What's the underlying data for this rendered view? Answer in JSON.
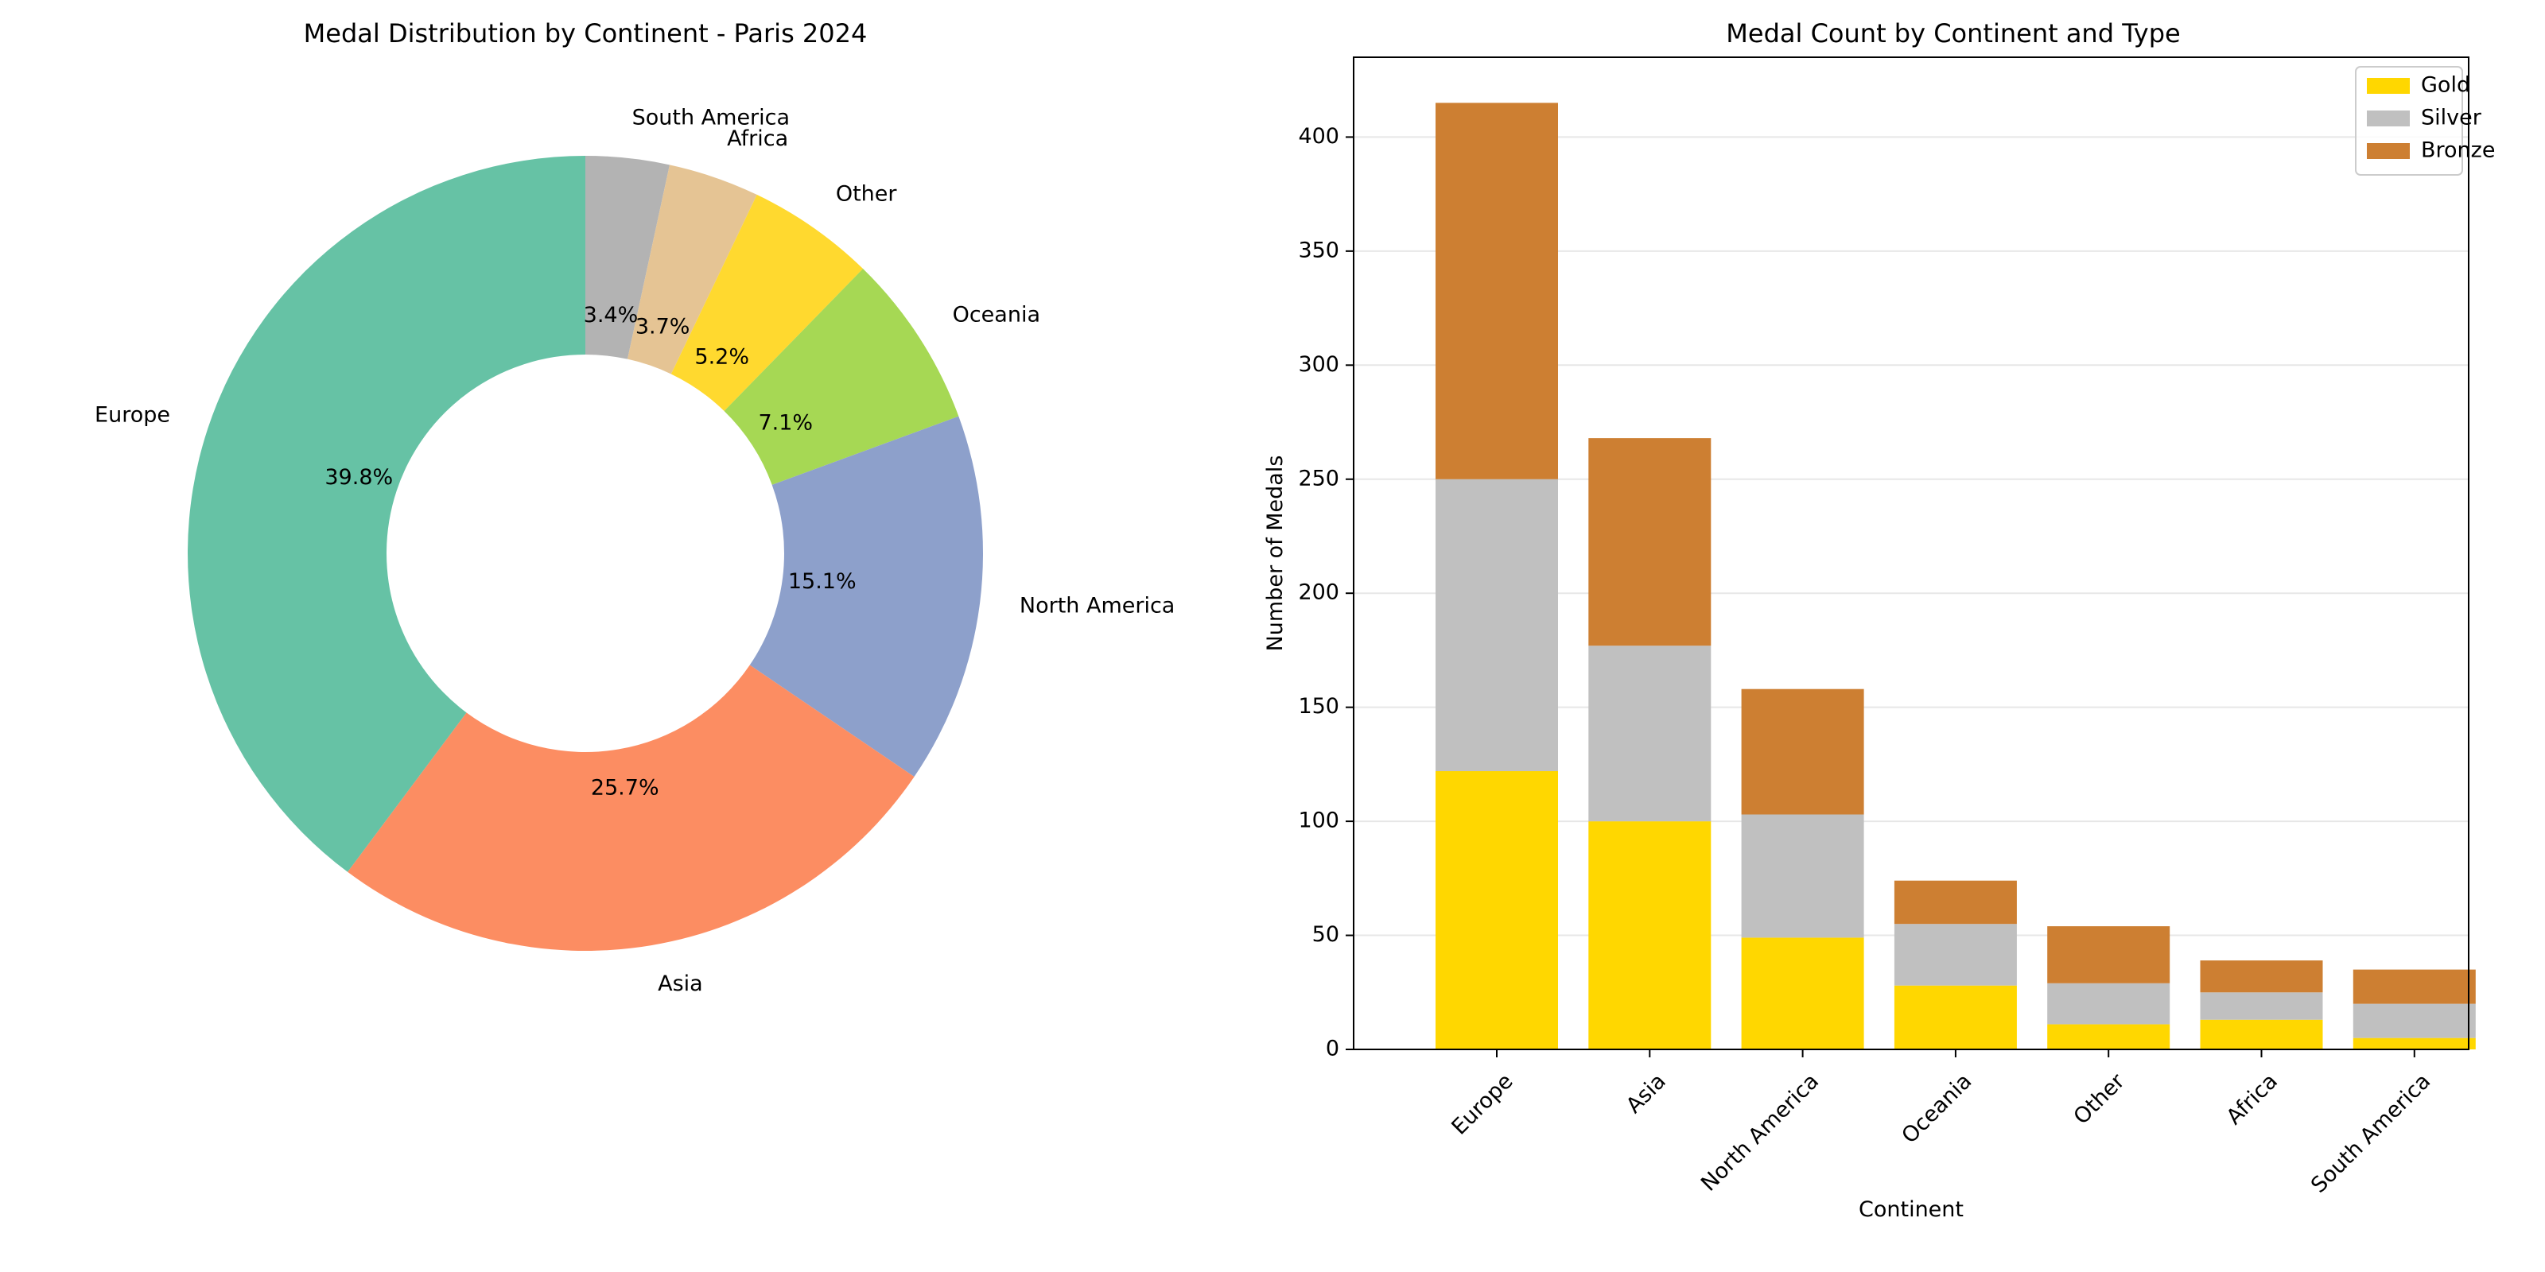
{
  "chart_data": [
    {
      "type": "pie",
      "title": "Medal Distribution by Continent - Paris 2024",
      "donut": true,
      "start_angle_deg": 90,
      "direction": "clockwise",
      "slices": [
        {
          "label": "South America",
          "value": 3.4,
          "pct_label": "3.4%",
          "color": "#b3b3b3"
        },
        {
          "label": "Africa",
          "value": 3.7,
          "pct_label": "3.7%",
          "color": "#e5c494"
        },
        {
          "label": "Other",
          "value": 5.2,
          "pct_label": "5.2%",
          "color": "#ffd92f"
        },
        {
          "label": "Oceania",
          "value": 7.1,
          "pct_label": "7.1%",
          "color": "#a6d854"
        },
        {
          "label": "North America",
          "value": 15.1,
          "pct_label": "15.1%",
          "color": "#8da0cb"
        },
        {
          "label": "Asia",
          "value": 25.7,
          "pct_label": "25.7%",
          "color": "#fc8d62"
        },
        {
          "label": "Europe",
          "value": 39.8,
          "pct_label": "39.8%",
          "color": "#66c2a5"
        }
      ]
    },
    {
      "type": "bar",
      "stacked": true,
      "title": "Medal Count by Continent and Type",
      "xlabel": "Continent",
      "ylabel": "Number of Medals",
      "ylim": [
        0,
        435
      ],
      "yticks": [
        0,
        50,
        100,
        150,
        200,
        250,
        300,
        350,
        400
      ],
      "grid": "y",
      "legend": "top-right",
      "categories": [
        "Europe",
        "Asia",
        "North America",
        "Oceania",
        "Other",
        "Africa",
        "South America"
      ],
      "series": [
        {
          "name": "Gold",
          "color": "#ffd700",
          "values": [
            122,
            100,
            49,
            28,
            11,
            13,
            5
          ]
        },
        {
          "name": "Silver",
          "color": "#c0c0c0",
          "values": [
            128,
            77,
            54,
            27,
            18,
            12,
            15
          ]
        },
        {
          "name": "Bronze",
          "color": "#cd7f32",
          "values": [
            165,
            91,
            55,
            19,
            25,
            14,
            15
          ]
        }
      ]
    }
  ]
}
